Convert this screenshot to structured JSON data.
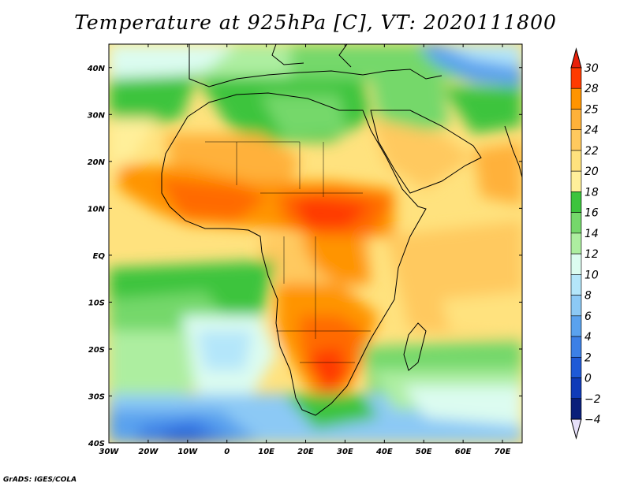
{
  "title": "Temperature at 925hPa [C], VT: 2020111800",
  "credit": "GrADS: IGES/COLA",
  "map": {
    "lon_range": [
      -30,
      75
    ],
    "lat_range": [
      -40,
      45
    ],
    "lon_ticks": [
      {
        "value": -30,
        "label": "30W"
      },
      {
        "value": -20,
        "label": "20W"
      },
      {
        "value": -10,
        "label": "10W"
      },
      {
        "value": 0,
        "label": "0"
      },
      {
        "value": 10,
        "label": "10E"
      },
      {
        "value": 20,
        "label": "20E"
      },
      {
        "value": 30,
        "label": "30E"
      },
      {
        "value": 40,
        "label": "40E"
      },
      {
        "value": 50,
        "label": "50E"
      },
      {
        "value": 60,
        "label": "60E"
      },
      {
        "value": 70,
        "label": "70E"
      }
    ],
    "lat_ticks": [
      {
        "value": 40,
        "label": "40N"
      },
      {
        "value": 30,
        "label": "30N"
      },
      {
        "value": 20,
        "label": "20N"
      },
      {
        "value": 10,
        "label": "10N"
      },
      {
        "value": 0,
        "label": "EQ"
      },
      {
        "value": -10,
        "label": "10S"
      },
      {
        "value": -20,
        "label": "20S"
      },
      {
        "value": -30,
        "label": "30S"
      },
      {
        "value": -40,
        "label": "40S"
      }
    ]
  },
  "colorbar": {
    "levels": [
      {
        "label": "30",
        "color": "#ff3b00"
      },
      {
        "label": "28",
        "color": "#ff6a00"
      },
      {
        "label": "25",
        "color": "#ff9400"
      },
      {
        "label": "24",
        "color": "#ffb13a"
      },
      {
        "label": "22",
        "color": "#ffc95e"
      },
      {
        "label": "20",
        "color": "#ffe27e"
      },
      {
        "label": "18",
        "color": "#ffef9a"
      },
      {
        "label": "16",
        "color": "#3dc43d"
      },
      {
        "label": "14",
        "color": "#75d86b"
      },
      {
        "label": "12",
        "color": "#adeea0"
      },
      {
        "label": "10",
        "color": "#dcfcf0"
      },
      {
        "label": "8",
        "color": "#b4e6fa"
      },
      {
        "label": "6",
        "color": "#8cc9f5"
      },
      {
        "label": "4",
        "color": "#5aa2ee"
      },
      {
        "label": "2",
        "color": "#3c80e6"
      },
      {
        "label": "0",
        "color": "#1f5ad6"
      },
      {
        "label": "−2",
        "color": "#0f3bb8"
      },
      {
        "label": "−4",
        "color": "#0a1f7a"
      }
    ],
    "top_color": "#e8200a",
    "bottom_color": "#e6e0fa"
  }
}
